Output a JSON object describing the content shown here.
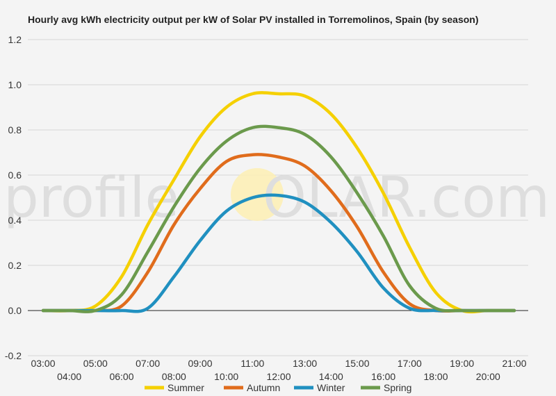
{
  "chart_data": {
    "type": "line",
    "title": "Hourly avg kWh electricity output per kW of Solar PV installed in Torremolinos, Spain (by season)",
    "xlabel": "",
    "ylabel": "",
    "ylim": [
      -0.2,
      1.2
    ],
    "yticks": [
      "1.2",
      "1.0",
      "0.8",
      "0.6",
      "0.4",
      "0.2",
      "0.0",
      "-0.2"
    ],
    "categories": [
      "03:00",
      "04:00",
      "05:00",
      "06:00",
      "07:00",
      "08:00",
      "09:00",
      "10:00",
      "11:00",
      "12:00",
      "13:00",
      "14:00",
      "15:00",
      "16:00",
      "17:00",
      "18:00",
      "19:00",
      "20:00",
      "21:00"
    ],
    "grid": true,
    "legend_position": "bottom",
    "series": [
      {
        "name": "Summer",
        "color": "#f5d000",
        "values": [
          0,
          0,
          0.02,
          0.15,
          0.38,
          0.58,
          0.77,
          0.9,
          0.96,
          0.96,
          0.95,
          0.87,
          0.72,
          0.52,
          0.28,
          0.08,
          0.0,
          0,
          0
        ]
      },
      {
        "name": "Autumn",
        "color": "#e06c1c",
        "values": [
          0,
          0,
          0.0,
          0.02,
          0.17,
          0.38,
          0.54,
          0.66,
          0.69,
          0.68,
          0.64,
          0.53,
          0.37,
          0.17,
          0.03,
          0.0,
          0,
          0,
          0
        ]
      },
      {
        "name": "Winter",
        "color": "#2090c0",
        "values": [
          0,
          0,
          0.0,
          0.0,
          0.01,
          0.15,
          0.31,
          0.44,
          0.5,
          0.51,
          0.48,
          0.39,
          0.26,
          0.1,
          0.01,
          0.0,
          0,
          0,
          0
        ]
      },
      {
        "name": "Spring",
        "color": "#6b9a4c",
        "values": [
          0,
          0,
          0.0,
          0.07,
          0.26,
          0.46,
          0.63,
          0.75,
          0.81,
          0.81,
          0.78,
          0.68,
          0.52,
          0.33,
          0.11,
          0.01,
          0.0,
          0,
          0
        ]
      }
    ]
  },
  "watermark": {
    "left": "profile",
    "right": "OLAR.com"
  }
}
